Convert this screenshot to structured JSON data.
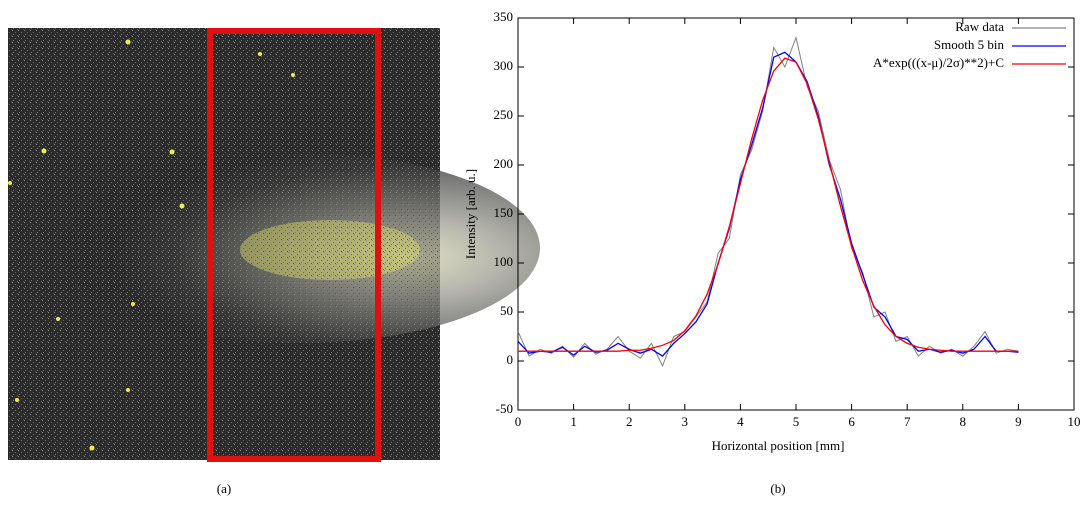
{
  "captions": [
    "(a)",
    "(b)"
  ],
  "chart_data": {
    "type": "line",
    "x_label": "Horizontal position [mm]",
    "y_label": "Intensity [arb. u.]",
    "x": [
      0,
      0.2,
      0.4,
      0.6,
      0.8,
      1.0,
      1.2,
      1.4,
      1.6,
      1.8,
      2.0,
      2.2,
      2.4,
      2.6,
      2.8,
      3.0,
      3.2,
      3.4,
      3.6,
      3.8,
      4.0,
      4.2,
      4.4,
      4.6,
      4.8,
      5.0,
      5.2,
      5.4,
      5.6,
      5.8,
      6.0,
      6.2,
      6.4,
      6.6,
      6.8,
      7.0,
      7.2,
      7.4,
      7.6,
      7.8,
      8.0,
      8.2,
      8.4,
      8.6,
      8.8,
      9.0
    ],
    "series": [
      {
        "name": "Raw data",
        "color": "#808080",
        "values": [
          30,
          5,
          12,
          8,
          15,
          4,
          18,
          7,
          12,
          25,
          10,
          3,
          18,
          -5,
          25,
          30,
          45,
          60,
          110,
          125,
          190,
          215,
          255,
          320,
          300,
          330,
          280,
          255,
          205,
          175,
          115,
          90,
          45,
          50,
          20,
          25,
          5,
          15,
          8,
          12,
          5,
          15,
          30,
          8,
          12,
          10
        ]
      },
      {
        "name": "Smooth 5 bin",
        "color": "#0000ff",
        "values": [
          20,
          8,
          10,
          9,
          14,
          6,
          15,
          9,
          11,
          18,
          12,
          8,
          12,
          5,
          18,
          28,
          40,
          58,
          100,
          135,
          185,
          220,
          258,
          310,
          315,
          305,
          285,
          250,
          200,
          165,
          120,
          88,
          55,
          45,
          25,
          22,
          10,
          12,
          9,
          11,
          8,
          12,
          25,
          10,
          10,
          9
        ]
      },
      {
        "name": "A*exp(((x-μ)/2σ)**2)+C",
        "color": "#ff0000",
        "values": [
          10,
          10,
          10,
          10,
          10,
          10,
          10,
          10,
          10,
          10,
          11,
          11,
          13,
          16,
          21,
          31,
          46,
          68,
          99,
          137,
          181,
          226,
          266,
          296,
          309,
          305,
          283,
          247,
          203,
          158,
          117,
          82,
          56,
          37,
          25,
          18,
          14,
          12,
          11,
          10,
          10,
          10,
          10,
          10,
          10,
          10
        ]
      }
    ],
    "xlim": [
      0,
      10
    ],
    "xticks": [
      0,
      1,
      2,
      3,
      4,
      5,
      6,
      7,
      8,
      9,
      10
    ],
    "ylim": [
      -50,
      350
    ],
    "yticks": [
      -50,
      0,
      50,
      100,
      150,
      200,
      250,
      300,
      350
    ],
    "legend": "top-right"
  }
}
